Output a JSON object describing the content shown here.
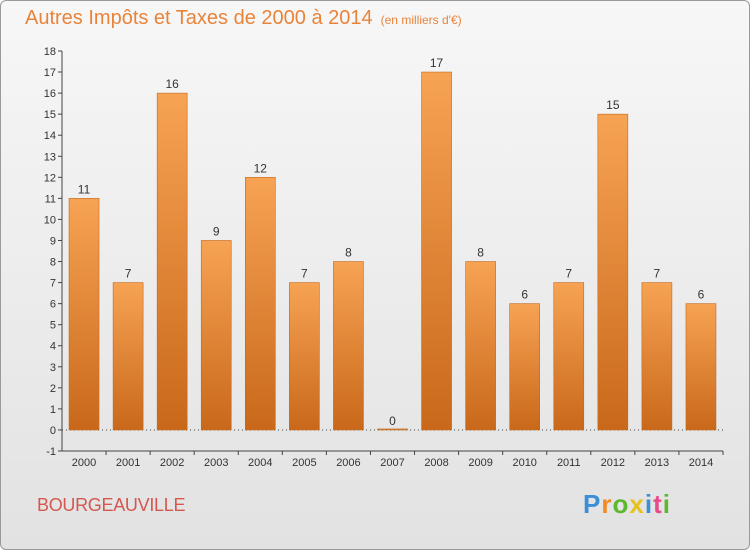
{
  "chart_data": {
    "type": "bar",
    "title": "Autres Impôts et Taxes de 2000 à 2014",
    "unit": "(en milliers d'€)",
    "categories": [
      "2000",
      "2001",
      "2002",
      "2003",
      "2004",
      "2005",
      "2006",
      "2007",
      "2008",
      "2009",
      "2010",
      "2011",
      "2012",
      "2013",
      "2014"
    ],
    "values": [
      11,
      7,
      16,
      9,
      12,
      7,
      8,
      0,
      17,
      8,
      6,
      7,
      15,
      7,
      6
    ],
    "ylim": [
      -1,
      18
    ],
    "yticks": [
      -1,
      0,
      1,
      2,
      3,
      4,
      5,
      6,
      7,
      8,
      9,
      10,
      11,
      12,
      13,
      14,
      15,
      16,
      17,
      18
    ],
    "grid": false,
    "bar_color_top": "#f7a354",
    "bar_color_bottom": "#c9681a"
  },
  "commune": "BOURGEAUVILLE",
  "logo": {
    "letters": [
      "P",
      "r",
      "o",
      "x",
      "i",
      "t",
      "i"
    ],
    "colors": [
      "#3a8fd6",
      "#f08a24",
      "#5cb82e",
      "#e8c21a",
      "#3a8fd6",
      "#e84a8a",
      "#5cb82e"
    ]
  }
}
